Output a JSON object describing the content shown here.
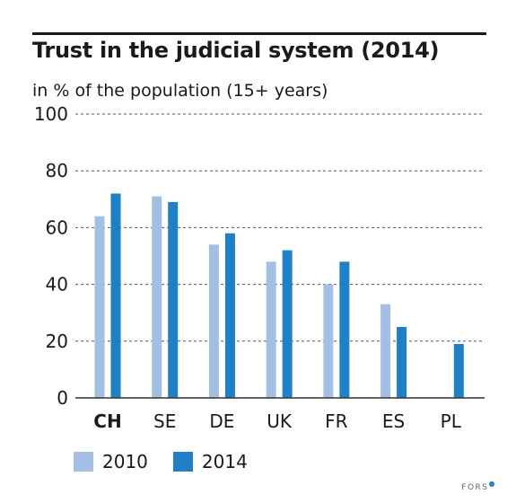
{
  "title": "Trust in the judicial system (2014)",
  "subtitle": "in % of the population (15+ years)",
  "logo_text": "FORS",
  "chart_data": {
    "type": "bar",
    "title": "Trust in the judicial system (2014)",
    "subtitle": "in % of the population (15+ years)",
    "categories": [
      "CH",
      "SE",
      "DE",
      "UK",
      "FR",
      "ES",
      "PL"
    ],
    "highlight_category": "CH",
    "series": [
      {
        "name": "2010",
        "color": "#a3bfe3",
        "values": [
          64,
          71,
          54,
          48,
          40,
          33,
          null
        ]
      },
      {
        "name": "2014",
        "color": "#1f80c6",
        "values": [
          72,
          69,
          58,
          52,
          48,
          25,
          19
        ]
      }
    ],
    "ylim": [
      0,
      100
    ],
    "yticks": [
      0,
      20,
      40,
      60,
      80,
      100
    ],
    "grid": "dashed horizontal",
    "legend_position": "bottom-left"
  }
}
